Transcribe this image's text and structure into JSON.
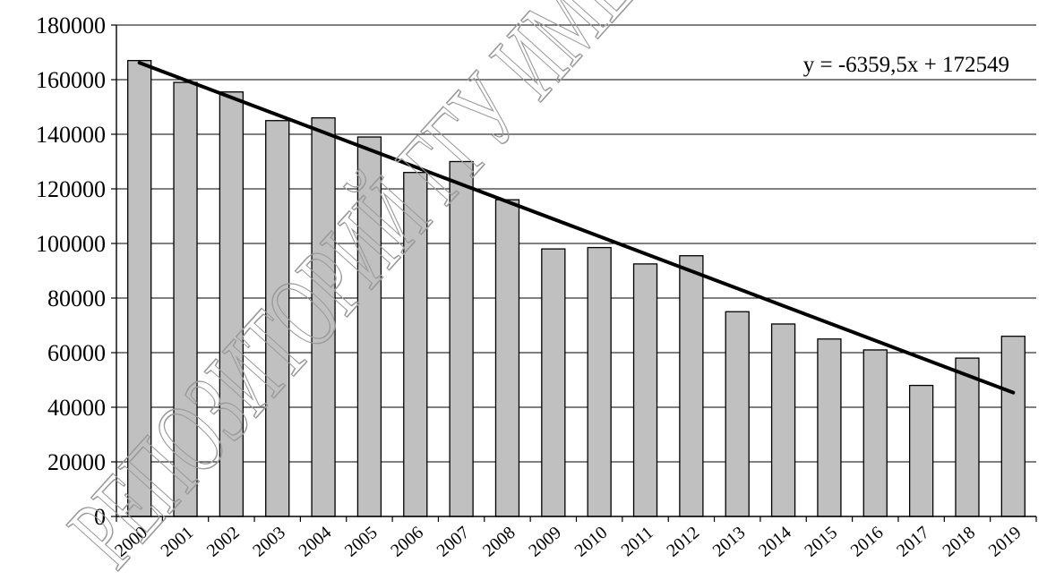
{
  "watermark_text": "РЕПОЗИТОРИЙ ГГУ ИМЕ",
  "chart_data": {
    "type": "bar",
    "title": "",
    "xlabel": "",
    "ylabel": "",
    "categories": [
      "2000",
      "2001",
      "2002",
      "2003",
      "2004",
      "2005",
      "2006",
      "2007",
      "2008",
      "2009",
      "2010",
      "2011",
      "2012",
      "2013",
      "2014",
      "2015",
      "2016",
      "2017",
      "2018",
      "2019"
    ],
    "values": [
      167000,
      159000,
      155500,
      145000,
      146000,
      139000,
      126000,
      130000,
      116000,
      98000,
      98500,
      92500,
      95500,
      75000,
      70500,
      65000,
      61000,
      48000,
      58000,
      66000
    ],
    "ylim": [
      0,
      180000
    ],
    "yticks": [
      "0",
      "20000",
      "40000",
      "60000",
      "80000",
      "100000",
      "120000",
      "140000",
      "160000",
      "180000"
    ],
    "grid": true,
    "legend": "none",
    "bar_color": "#c0c0c0",
    "bar_edge_color": "#000000",
    "trendline": {
      "type": "linear",
      "slope": -6359.5,
      "intercept": 172549,
      "equation_label": "y = -6359,5x + 172549",
      "color": "#000000"
    }
  }
}
